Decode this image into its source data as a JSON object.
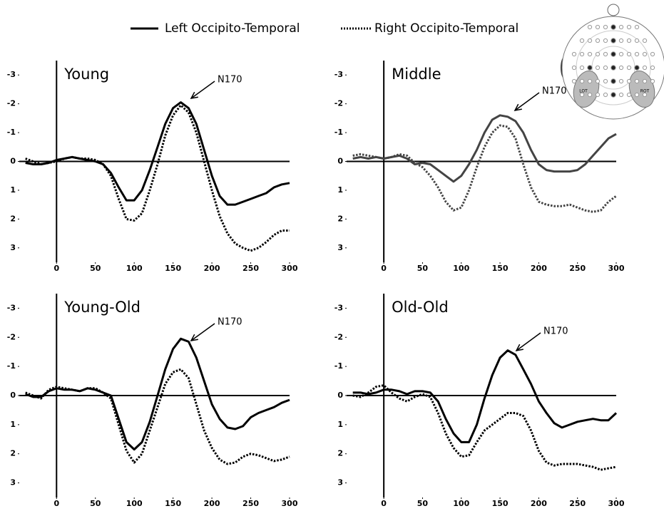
{
  "legend": [
    "Left Occipito-Temporal",
    "Right Occipito-Temporal"
  ],
  "head_map": {
    "labels": [
      "LOT",
      "ROT"
    ]
  },
  "chart_data": [
    {
      "type": "line",
      "title": "Young",
      "annotation": "N170",
      "x": [
        -40,
        -30,
        -20,
        -10,
        0,
        10,
        20,
        30,
        40,
        50,
        60,
        70,
        80,
        90,
        100,
        110,
        120,
        130,
        140,
        150,
        160,
        170,
        180,
        190,
        200,
        210,
        220,
        230,
        240,
        250,
        260,
        270,
        280,
        290,
        300
      ],
      "series": [
        {
          "color": "#000000",
          "dash": "solid",
          "values": [
            0.05,
            0.1,
            0.1,
            0.05,
            -0.05,
            -0.1,
            -0.15,
            -0.1,
            -0.05,
            0,
            0.1,
            0.4,
            0.9,
            1.35,
            1.35,
            1.0,
            0.3,
            -0.5,
            -1.3,
            -1.85,
            -2.05,
            -1.85,
            -1.3,
            -0.4,
            0.5,
            1.2,
            1.5,
            1.5,
            1.4,
            1.3,
            1.2,
            1.1,
            0.9,
            0.8,
            0.75
          ]
        },
        {
          "color": "#000000",
          "dash": "dotted",
          "values": [
            -0.1,
            0,
            0.1,
            0.05,
            0,
            -0.1,
            -0.15,
            -0.1,
            -0.1,
            -0.05,
            0.1,
            0.5,
            1.3,
            2.0,
            2.05,
            1.8,
            1.0,
            0.1,
            -0.9,
            -1.6,
            -1.95,
            -1.7,
            -1.0,
            0,
            1.0,
            1.9,
            2.5,
            2.85,
            3.0,
            3.1,
            3.0,
            2.8,
            2.55,
            2.4,
            2.4
          ]
        }
      ],
      "xlim": [
        -48,
        300
      ],
      "xticks": [
        0,
        50,
        100,
        150,
        200,
        250,
        300
      ],
      "ylim": [
        3.5,
        -3.5
      ],
      "yticks": [
        -3,
        -2,
        -1,
        0,
        1,
        2,
        3
      ]
    },
    {
      "type": "line",
      "title": "Middle",
      "annotation": "N170",
      "x": [
        -40,
        -30,
        -20,
        -10,
        0,
        10,
        20,
        30,
        40,
        50,
        60,
        70,
        80,
        90,
        100,
        110,
        120,
        130,
        140,
        150,
        160,
        170,
        180,
        190,
        200,
        210,
        220,
        230,
        240,
        250,
        260,
        270,
        280,
        290,
        300
      ],
      "series": [
        {
          "color": "#444444",
          "dash": "solid",
          "values": [
            -0.1,
            -0.15,
            -0.1,
            -0.15,
            -0.1,
            -0.15,
            -0.2,
            -0.1,
            0.1,
            0.05,
            0.1,
            0.3,
            0.5,
            0.7,
            0.5,
            0.1,
            -0.4,
            -1.0,
            -1.45,
            -1.6,
            -1.55,
            -1.4,
            -1.0,
            -0.4,
            0.1,
            0.3,
            0.35,
            0.35,
            0.35,
            0.3,
            0.1,
            -0.2,
            -0.5,
            -0.8,
            -0.95
          ]
        },
        {
          "color": "#444444",
          "dash": "dotted",
          "values": [
            -0.2,
            -0.25,
            -0.2,
            -0.15,
            -0.1,
            -0.15,
            -0.25,
            -0.2,
            0.05,
            0.2,
            0.5,
            0.9,
            1.4,
            1.7,
            1.6,
            1.0,
            0.2,
            -0.5,
            -1.0,
            -1.25,
            -1.2,
            -0.8,
            0.1,
            0.9,
            1.4,
            1.5,
            1.55,
            1.55,
            1.5,
            1.6,
            1.7,
            1.75,
            1.7,
            1.4,
            1.2
          ]
        }
      ],
      "xlim": [
        -48,
        300
      ],
      "xticks": [
        0,
        50,
        100,
        150,
        200,
        250,
        300
      ],
      "ylim": [
        3.5,
        -3.5
      ],
      "yticks": [
        -3,
        -2,
        -1,
        0,
        1,
        2,
        3
      ]
    },
    {
      "type": "line",
      "title": "Young-Old",
      "annotation": "N170",
      "x": [
        -40,
        -30,
        -20,
        -10,
        0,
        10,
        20,
        30,
        40,
        50,
        60,
        70,
        80,
        90,
        100,
        110,
        120,
        130,
        140,
        150,
        160,
        170,
        180,
        190,
        200,
        210,
        220,
        230,
        240,
        250,
        260,
        270,
        280,
        290,
        300
      ],
      "series": [
        {
          "color": "#000000",
          "dash": "solid",
          "values": [
            -0.05,
            0.05,
            0.05,
            -0.15,
            -0.25,
            -0.2,
            -0.2,
            -0.15,
            -0.25,
            -0.2,
            -0.1,
            0,
            0.8,
            1.6,
            1.85,
            1.6,
            0.9,
            0,
            -0.9,
            -1.6,
            -1.95,
            -1.85,
            -1.3,
            -0.5,
            0.3,
            0.8,
            1.1,
            1.15,
            1.05,
            0.75,
            0.6,
            0.5,
            0.4,
            0.25,
            0.15
          ]
        },
        {
          "color": "#000000",
          "dash": "dotted",
          "values": [
            -0.1,
            0,
            0.1,
            -0.2,
            -0.3,
            -0.25,
            -0.2,
            -0.15,
            -0.25,
            -0.25,
            -0.1,
            0.1,
            1.0,
            1.9,
            2.3,
            2.0,
            1.2,
            0.4,
            -0.4,
            -0.8,
            -0.9,
            -0.6,
            0.3,
            1.2,
            1.8,
            2.2,
            2.35,
            2.3,
            2.1,
            2.0,
            2.05,
            2.15,
            2.25,
            2.2,
            2.1
          ]
        }
      ],
      "xlim": [
        -48,
        300
      ],
      "xticks": [
        0,
        50,
        100,
        150,
        200,
        250,
        300
      ],
      "ylim": [
        3.5,
        -3.5
      ],
      "yticks": [
        -3,
        -2,
        -1,
        0,
        1,
        2,
        3
      ]
    },
    {
      "type": "line",
      "title": "Old-Old",
      "annotation": "N170",
      "x": [
        -40,
        -30,
        -20,
        -10,
        0,
        10,
        20,
        30,
        40,
        50,
        60,
        70,
        80,
        90,
        100,
        110,
        120,
        130,
        140,
        150,
        160,
        170,
        180,
        190,
        200,
        210,
        220,
        230,
        240,
        250,
        260,
        270,
        280,
        290,
        300
      ],
      "series": [
        {
          "color": "#000000",
          "dash": "solid",
          "values": [
            -0.1,
            -0.1,
            -0.05,
            -0.1,
            -0.2,
            -0.2,
            -0.15,
            -0.05,
            -0.15,
            -0.15,
            -0.1,
            0.2,
            0.8,
            1.3,
            1.6,
            1.6,
            1.0,
            0.1,
            -0.7,
            -1.3,
            -1.55,
            -1.4,
            -0.9,
            -0.4,
            0.2,
            0.6,
            0.95,
            1.1,
            1.0,
            0.9,
            0.85,
            0.8,
            0.85,
            0.85,
            0.6
          ]
        },
        {
          "color": "#000000",
          "dash": "dotted",
          "values": [
            0,
            0.05,
            -0.1,
            -0.3,
            -0.35,
            -0.1,
            0.1,
            0.2,
            0.05,
            -0.05,
            0.05,
            0.6,
            1.3,
            1.8,
            2.1,
            2.05,
            1.6,
            1.2,
            1.0,
            0.8,
            0.6,
            0.6,
            0.7,
            1.2,
            1.9,
            2.3,
            2.4,
            2.35,
            2.35,
            2.35,
            2.4,
            2.45,
            2.55,
            2.5,
            2.45
          ]
        }
      ],
      "xlim": [
        -48,
        300
      ],
      "xticks": [
        0,
        50,
        100,
        150,
        200,
        250,
        300
      ],
      "ylim": [
        3.5,
        -3.5
      ],
      "yticks": [
        -3,
        -2,
        -1,
        0,
        1,
        2,
        3
      ]
    }
  ]
}
